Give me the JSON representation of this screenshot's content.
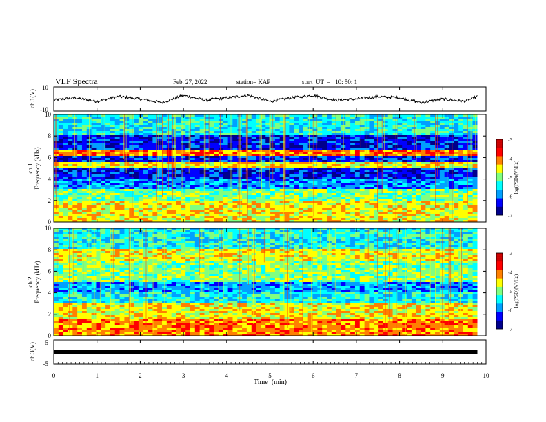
{
  "header": {
    "title": "VLF Spectra",
    "date": "Feb. 27, 2022",
    "station": "station= KAP",
    "start": "start  UT  =   10: 50: 1"
  },
  "colors": {
    "background": "#ffffff",
    "ink": "#000000",
    "colormap": [
      "#00008c",
      "#0000ff",
      "#00a0ff",
      "#00ffff",
      "#80ff80",
      "#ffff00",
      "#ff8000",
      "#ff0000",
      "#cc0000"
    ]
  },
  "chart_data": [
    {
      "type": "line",
      "ylabel": "ch.1(V)",
      "ylim": [
        -10,
        10
      ],
      "yticks": [
        "10",
        "-10"
      ],
      "xlim": [
        0,
        10
      ],
      "description_values": {
        "x": [
          0,
          0.5,
          1,
          1.5,
          2,
          2.5,
          3,
          3.5,
          4,
          4.5,
          5,
          5.5,
          6,
          6.5,
          7,
          7.5,
          8,
          8.5,
          9,
          9.5,
          9.8
        ],
        "y": [
          -1,
          1,
          -2,
          2,
          0,
          -3,
          3,
          -1,
          1,
          3,
          -2,
          1,
          3,
          -1,
          0,
          2,
          1,
          -3,
          0,
          -2,
          2
        ]
      }
    },
    {
      "type": "heatmap",
      "ylabel_top": "ch.1",
      "ylabel": "Frequency  (kHz)",
      "ylim": [
        0,
        10
      ],
      "yticks": [
        "0",
        "2",
        "4",
        "6",
        "8",
        "10"
      ],
      "xlim": [
        0,
        10
      ],
      "colorbar": {
        "label": "log(PSD)(V²/Hz)",
        "range": [
          -7,
          -3
        ],
        "ticks": [
          "-3",
          "-4",
          "-5",
          "-6",
          "-7"
        ]
      },
      "bands": [
        {
          "from": 0.0,
          "to": 2.0,
          "level": 5
        },
        {
          "from": 2.0,
          "to": 3.0,
          "level": 4
        },
        {
          "from": 3.0,
          "to": 4.0,
          "level": 2
        },
        {
          "from": 4.0,
          "to": 5.0,
          "level": 1
        },
        {
          "from": 5.0,
          "to": 5.5,
          "level": 5
        },
        {
          "from": 5.5,
          "to": 6.2,
          "level": 1
        },
        {
          "from": 6.2,
          "to": 6.8,
          "level": 6
        },
        {
          "from": 6.8,
          "to": 8.0,
          "level": 1
        },
        {
          "from": 8.0,
          "to": 10.0,
          "level": 3
        }
      ]
    },
    {
      "type": "heatmap",
      "ylabel_top": "ch.2",
      "ylabel": "Frequency  (kHz)",
      "ylim": [
        0,
        10
      ],
      "yticks": [
        "0",
        "2",
        "4",
        "6",
        "8",
        "10"
      ],
      "xlim": [
        0,
        10
      ],
      "colorbar": {
        "label": "log(PSD)(V²/Hz)",
        "range": [
          -7,
          -3
        ],
        "ticks": [
          "-3",
          "-4",
          "-5",
          "-6",
          "-7"
        ]
      },
      "bands": [
        {
          "from": 0.0,
          "to": 1.5,
          "level": 6
        },
        {
          "from": 1.5,
          "to": 3.0,
          "level": 5
        },
        {
          "from": 3.0,
          "to": 4.0,
          "level": 3
        },
        {
          "from": 4.0,
          "to": 5.0,
          "level": 2
        },
        {
          "from": 5.0,
          "to": 7.0,
          "level": 4
        },
        {
          "from": 7.0,
          "to": 8.0,
          "level": 5
        },
        {
          "from": 8.0,
          "to": 10.0,
          "level": 3
        }
      ]
    },
    {
      "type": "line",
      "ylabel": "ch.3(V)",
      "ylim": [
        -5,
        5
      ],
      "yticks": [
        "5",
        "-5"
      ],
      "xlim": [
        0,
        10
      ],
      "xlabel": "Time  (min)",
      "xticks": [
        "0",
        "1",
        "2",
        "3",
        "4",
        "5",
        "6",
        "7",
        "8",
        "9",
        "10"
      ],
      "level": 0,
      "series_end": 9.8
    }
  ]
}
